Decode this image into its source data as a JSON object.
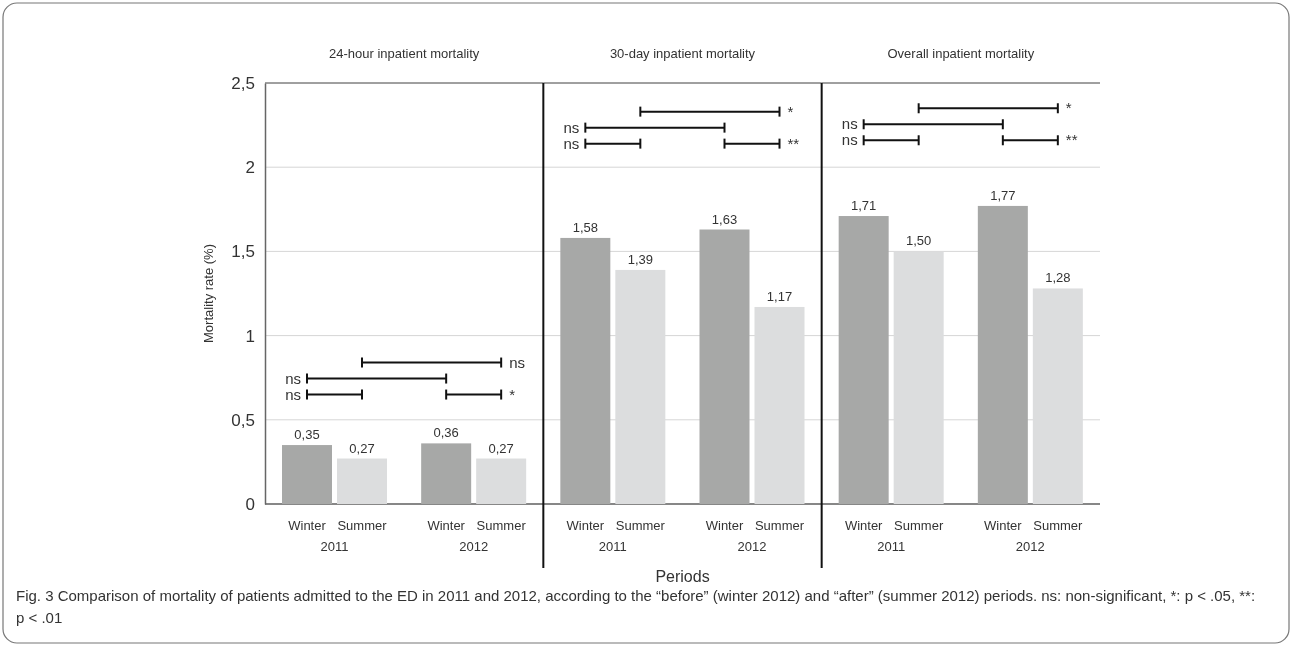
{
  "chart_data": [
    {
      "type": "bar",
      "title": "24-hour inpatient mortality",
      "ylabel": "Mortality rate (%)",
      "categories": [
        "2011",
        "2012"
      ],
      "ylim": [
        0,
        2.5
      ],
      "yticks": [
        0,
        {
          "value": 0.5,
          "label": "0,5"
        },
        1,
        {
          "value": 1.5,
          "label": "1,5"
        },
        2,
        {
          "value": 2.5,
          "label": "2,5"
        }
      ],
      "grid": "y",
      "series": [
        {
          "name": "Winter",
          "color": "#a7a8a7",
          "values": [
            0.35,
            0.36
          ],
          "value_labels": [
            "0,35",
            "0,36"
          ]
        },
        {
          "name": "Summer",
          "color": "#dcddde",
          "values": [
            0.27,
            0.27
          ],
          "value_labels": [
            "0,27",
            "0,27"
          ]
        }
      ],
      "annotations": [
        "ns",
        "ns",
        "ns",
        "*"
      ]
    },
    {
      "type": "bar",
      "title": "30-day inpatient mortality",
      "xlabel": "Periods",
      "categories": [
        "2011",
        "2012"
      ],
      "ylim": [
        0,
        2.5
      ],
      "yticks": [
        0,
        0.5,
        1,
        1.5,
        2,
        2.5
      ],
      "grid": "y",
      "tick_labels": "x",
      "series": [
        {
          "name": "Winter",
          "color": "#a7a8a7",
          "values": [
            1.58,
            1.63
          ],
          "value_labels": [
            "1,58",
            "1,63"
          ]
        },
        {
          "name": "Summer",
          "color": "#dcddde",
          "values": [
            1.39,
            1.17
          ],
          "value_labels": [
            "1,39",
            "1,17"
          ]
        }
      ],
      "annotations": [
        "*",
        "ns",
        "ns",
        "**"
      ]
    },
    {
      "type": "bar",
      "title": "Overall inpatient mortality",
      "categories": [
        "2011",
        "2012"
      ],
      "ylim": [
        0,
        2.5
      ],
      "yticks": [
        0,
        0.5,
        1,
        1.5,
        2,
        2.5
      ],
      "grid": "y",
      "tick_labels": "x",
      "series": [
        {
          "name": "Winter",
          "color": "#a7a8a7",
          "values": [
            1.71,
            1.77
          ],
          "value_labels": [
            "1,71",
            "1,77"
          ]
        },
        {
          "name": "Summer",
          "color": "#dcddde",
          "values": [
            1.5,
            1.28
          ],
          "value_labels": [
            "1,50",
            "1,28"
          ]
        }
      ],
      "annotations": [
        "*",
        "ns",
        "ns",
        "**",
        "Fig. 3 Comparison of mortality of patients admitted to the ED in 2011 and 2012, according to the “before” (winter 2012) and “after” (summer 2012) periods. ns: non-significant, *: p < .05, **: p < .01"
      ]
    }
  ]
}
